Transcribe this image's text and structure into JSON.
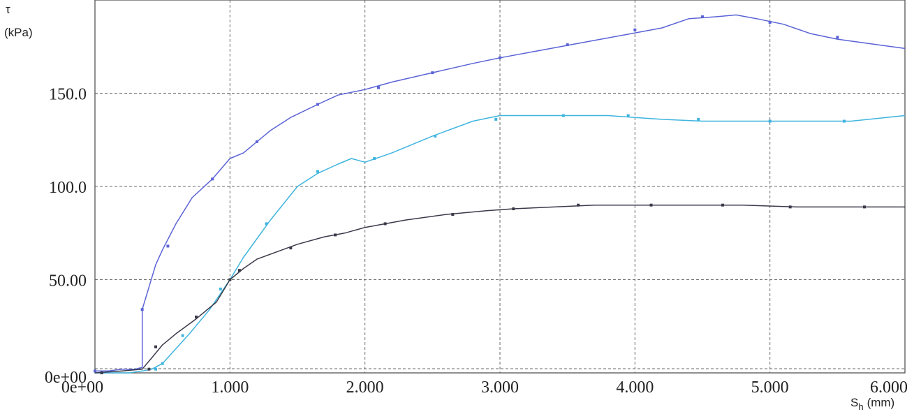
{
  "chart_data": {
    "type": "line",
    "title": "",
    "xlabel_main": "S",
    "xlabel_sub": "h",
    "xlabel_unit": "(mm)",
    "ylabel_symbol": "τ",
    "ylabel_unit": "(kPa)",
    "xlim": [
      0,
      6
    ],
    "ylim": [
      0,
      200
    ],
    "grid": true,
    "x_ticks": [
      {
        "value": 0,
        "label": "0e+00"
      },
      {
        "value": 1,
        "label": "1.000"
      },
      {
        "value": 2,
        "label": "2.000"
      },
      {
        "value": 3,
        "label": "3.000"
      },
      {
        "value": 4,
        "label": "4.000"
      },
      {
        "value": 5,
        "label": "5.000"
      },
      {
        "value": 6,
        "label": "6.000"
      }
    ],
    "y_ticks": [
      {
        "value": 0,
        "label": "0e+00"
      },
      {
        "value": 50,
        "label": "50.00"
      },
      {
        "value": 100,
        "label": "100.0"
      },
      {
        "value": 150,
        "label": "150.0"
      }
    ],
    "series": [
      {
        "color": "#5a63d6",
        "x": [
          0,
          0.1,
          0.2,
          0.3,
          0.35,
          0.35,
          0.45,
          0.5,
          0.6,
          0.72,
          0.87,
          1.0,
          1.1,
          1.2,
          1.3,
          1.45,
          1.65,
          1.8,
          2.0,
          2.2,
          2.5,
          2.8,
          3.0,
          3.3,
          3.6,
          3.9,
          4.2,
          4.4,
          4.6,
          4.75,
          4.9,
          5.1,
          5.3,
          5.5,
          5.8,
          6.0
        ],
        "y": [
          1,
          1,
          2,
          2,
          3,
          34,
          58,
          66,
          80,
          94,
          104,
          115,
          118,
          124,
          130,
          137,
          144,
          149,
          152,
          156,
          161,
          166,
          169,
          173,
          177,
          181,
          185,
          190,
          191,
          192,
          190,
          187,
          182,
          179,
          176,
          174
        ],
        "markers_x": [
          0,
          0.35,
          0.54,
          0.87,
          1.2,
          1.65,
          2.1,
          2.5,
          3.0,
          3.5,
          4.0,
          4.5,
          5.0,
          5.5
        ],
        "markers_y": [
          1,
          34,
          68,
          104,
          124,
          144,
          153,
          161,
          169,
          176,
          184,
          191,
          188,
          180
        ]
      },
      {
        "color": "#3fb4de",
        "x": [
          0,
          0.25,
          0.35,
          0.42,
          0.5,
          0.6,
          0.7,
          0.85,
          1.0,
          1.1,
          1.3,
          1.5,
          1.65,
          1.8,
          1.9,
          2.0,
          2.2,
          2.5,
          2.8,
          3.0,
          3.2,
          3.5,
          3.8,
          4.0,
          4.2,
          4.5,
          4.8,
          5.0,
          5.3,
          5.6,
          6.0
        ],
        "y": [
          0,
          0,
          1,
          2,
          5,
          13,
          21,
          34,
          50,
          62,
          82,
          100,
          107,
          112,
          115,
          113,
          118,
          127,
          135,
          138,
          138,
          138,
          138,
          137,
          136,
          135,
          135,
          135,
          135,
          135,
          138
        ],
        "markers_x": [
          0.45,
          0.5,
          0.65,
          0.93,
          1.27,
          1.65,
          2.07,
          2.52,
          2.97,
          3.47,
          3.95,
          4.47,
          5.0,
          5.55
        ],
        "markers_y": [
          2,
          5,
          20,
          45,
          80,
          108,
          115,
          127,
          136,
          138,
          138,
          136,
          135,
          135
        ]
      },
      {
        "color": "#3a3a4a",
        "x": [
          0,
          0.2,
          0.35,
          0.42,
          0.5,
          0.6,
          0.75,
          0.9,
          1.0,
          1.1,
          1.2,
          1.35,
          1.5,
          1.7,
          1.85,
          2.0,
          2.3,
          2.6,
          2.9,
          3.1,
          3.4,
          3.7,
          4.0,
          4.4,
          4.8,
          5.2,
          5.6,
          6.0
        ],
        "y": [
          0,
          1,
          2,
          8,
          15,
          21,
          29,
          38,
          50,
          56,
          61,
          65,
          69,
          73,
          75,
          78,
          82,
          85,
          87,
          88,
          89,
          90,
          90,
          90,
          90,
          89,
          89,
          89
        ],
        "markers_x": [
          0.05,
          0.4,
          0.45,
          0.75,
          1.0,
          1.07,
          1.45,
          1.78,
          2.15,
          2.65,
          3.1,
          3.58,
          4.12,
          4.65,
          5.15,
          5.7
        ],
        "markers_y": [
          0,
          2,
          14,
          30,
          50,
          55,
          67,
          74,
          80,
          85,
          88,
          90,
          90,
          90,
          89,
          89
        ]
      }
    ]
  }
}
